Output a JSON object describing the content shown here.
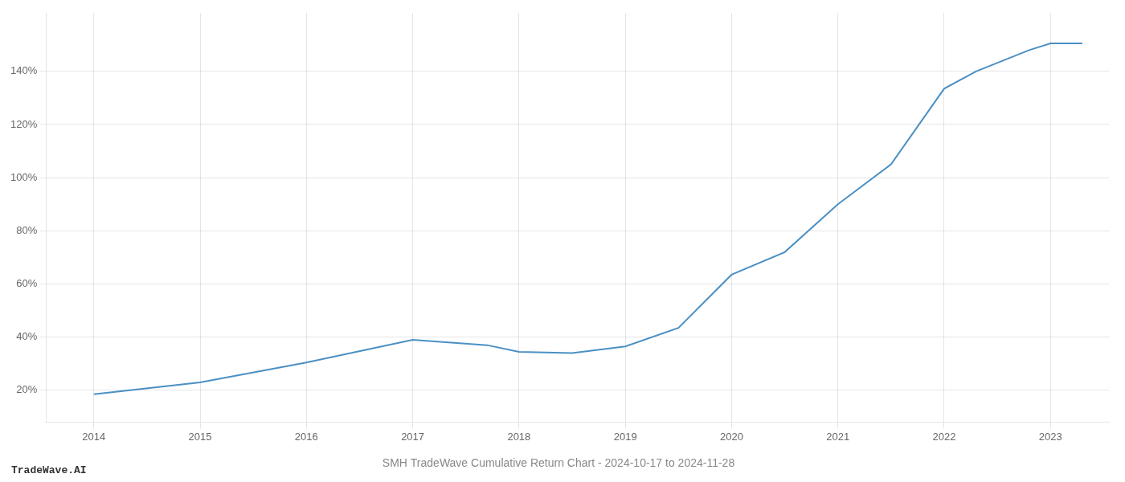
{
  "chart_data": {
    "type": "line",
    "title": "SMH TradeWave Cumulative Return Chart - 2024-10-17 to 2024-11-28",
    "annotations": [
      "TradeWave.AI"
    ],
    "x": [
      2014,
      2015,
      2016,
      2017,
      2017.7,
      2018,
      2018.5,
      2019,
      2019.5,
      2020,
      2020.5,
      2021,
      2021.5,
      2022,
      2022.3,
      2022.8,
      2023,
      2023.3
    ],
    "values": [
      18.5,
      23.0,
      30.5,
      39.0,
      37.0,
      34.5,
      34.0,
      36.5,
      43.5,
      63.5,
      72.0,
      90.0,
      105.0,
      133.5,
      140.0,
      148.0,
      150.5,
      150.5
    ],
    "color": "#4a90c4",
    "xlim": [
      2013.55,
      2023.55
    ],
    "xticks": [
      2014,
      2015,
      2016,
      2017,
      2018,
      2019,
      2020,
      2021,
      2022,
      2023
    ],
    "ylim": [
      8,
      162
    ],
    "yticks": [
      {
        "value": 20,
        "label": "20%"
      },
      {
        "value": 40,
        "label": "40%"
      },
      {
        "value": 60,
        "label": "60%"
      },
      {
        "value": 80,
        "label": "80%"
      },
      {
        "value": 100,
        "label": "100%"
      },
      {
        "value": 120,
        "label": "120%"
      },
      {
        "value": 140,
        "label": "140%"
      }
    ],
    "grid": true
  }
}
